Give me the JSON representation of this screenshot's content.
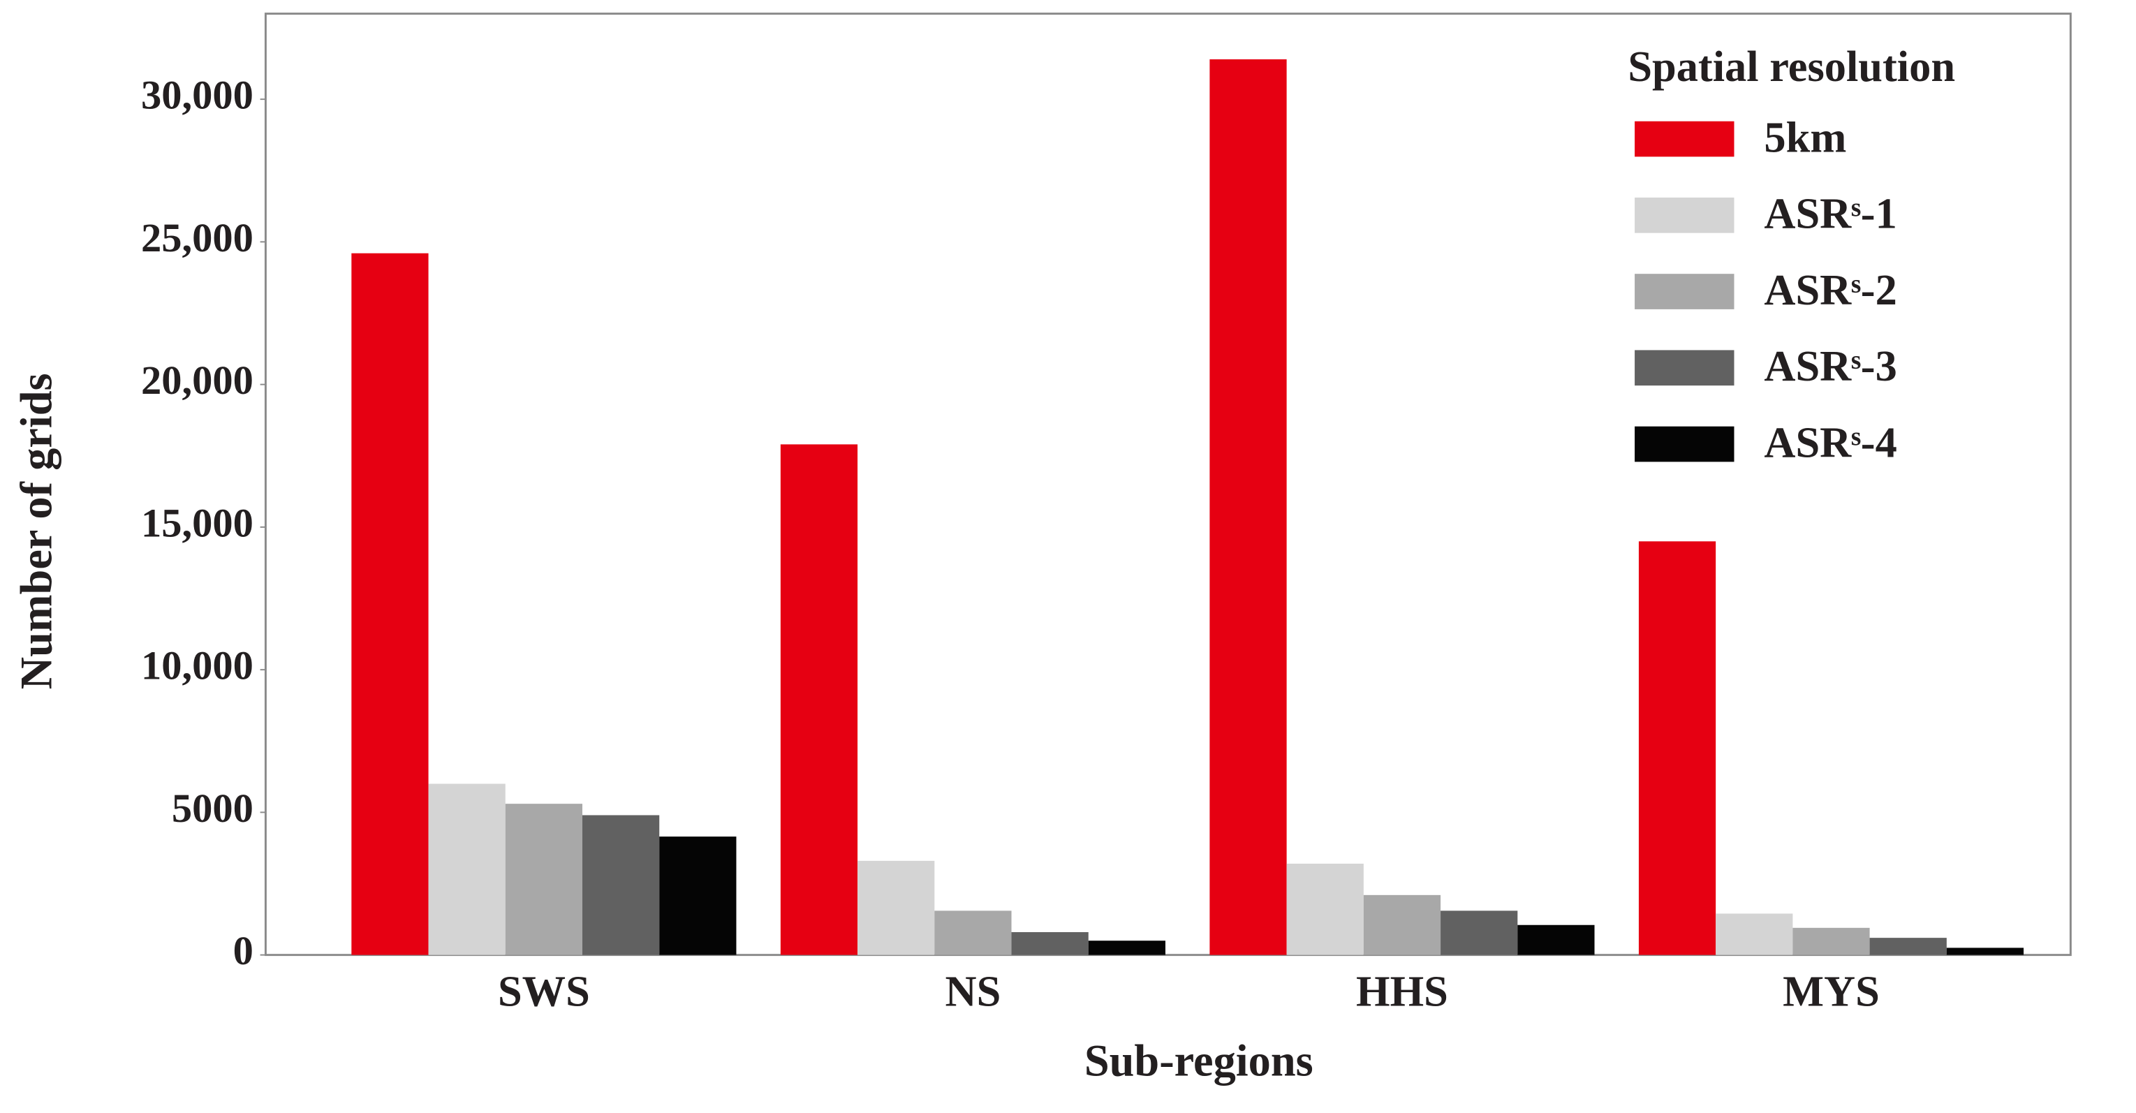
{
  "chart_data": {
    "type": "bar",
    "x_label": "Sub-regions",
    "y_label": "Number of grids",
    "legend_title": "Spatial resolution",
    "legend_position": "upper right",
    "categories": [
      "SWS",
      "NS",
      "HHS",
      "MYS"
    ],
    "series": [
      {
        "name": "5km",
        "color": "#e60012",
        "values": [
          24600,
          17900,
          31400,
          14500
        ]
      },
      {
        "name": "ASRˢ-1",
        "color": "#d4d4d4",
        "values": [
          6000,
          3300,
          3200,
          1450
        ]
      },
      {
        "name": "ASRˢ-2",
        "color": "#a8a8a8",
        "values": [
          5300,
          1550,
          2100,
          950
        ]
      },
      {
        "name": "ASRˢ-3",
        "color": "#616161",
        "values": [
          4900,
          800,
          1550,
          600
        ]
      },
      {
        "name": "ASRˢ-4",
        "color": "#050505",
        "values": [
          4150,
          500,
          1050,
          250
        ]
      }
    ],
    "ylim": [
      0,
      33000
    ],
    "yticks": [
      0,
      5000,
      {
        "value": 10000,
        "label": "10,000"
      },
      {
        "value": 15000,
        "label": "15,000"
      },
      {
        "value": 20000,
        "label": "20,000"
      },
      {
        "value": 25000,
        "label": "25,000"
      },
      {
        "value": 30000,
        "label": "30,000"
      }
    ]
  }
}
